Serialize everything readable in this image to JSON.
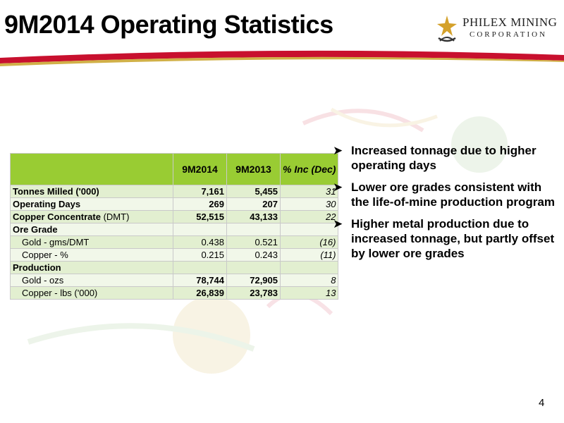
{
  "title": "9M2014 Operating Statistics",
  "logo": {
    "name": "PHILEX MINING",
    "sub": "CORPORATION",
    "icon": "philex-emblem-icon"
  },
  "table": {
    "headers": [
      "",
      "9M2014",
      "9M2013",
      "% Inc (Dec)"
    ],
    "rows": [
      {
        "label": "Tonnes Milled ('000)",
        "label_bold": "Tonnes Milled ('000)",
        "label_rest": "",
        "v2014": "7,161",
        "v2013": "5,455",
        "pct": "31"
      },
      {
        "label": "Operating Days",
        "label_bold": "Operating Days",
        "label_rest": "",
        "v2014": "269",
        "v2013": "207",
        "pct": "30"
      },
      {
        "label": "Copper Concentrate (DMT)",
        "label_bold": "Copper Concentrate",
        "label_rest": " (DMT)",
        "v2014": "52,515",
        "v2013": "43,133",
        "pct": "22"
      },
      {
        "label": "Ore Grade",
        "label_bold": "Ore Grade",
        "label_rest": "",
        "v2014": "",
        "v2013": "",
        "pct": ""
      },
      {
        "label": "Gold - gms/DMT",
        "label_bold": "",
        "label_rest": "Gold - gms/DMT",
        "v2014": "0.438",
        "v2013": "0.521",
        "pct": "(16)"
      },
      {
        "label": "Copper - %",
        "label_bold": "",
        "label_rest": "Copper - %",
        "v2014": "0.215",
        "v2013": "0.243",
        "pct": "(11)"
      },
      {
        "label": "Production",
        "label_bold": "Production",
        "label_rest": "",
        "v2014": "",
        "v2013": "",
        "pct": ""
      },
      {
        "label": "Gold - ozs",
        "label_bold": "",
        "label_rest": "Gold - ozs",
        "v2014": "78,744",
        "v2013": "72,905",
        "pct": "8"
      },
      {
        "label": "Copper - lbs ('000)",
        "label_bold": "",
        "label_rest": "Copper - lbs ('000)",
        "v2014": "26,839",
        "v2013": "23,783",
        "pct": "13"
      }
    ]
  },
  "bullets": [
    "Increased tonnage due to higher operating days",
    "Lower ore grades consistent with the life-of-mine production program",
    "Higher metal production due to increased tonnage, but partly offset by lower ore grades"
  ],
  "bullet_icon": "arrow-bullet-icon",
  "page_number": "4",
  "colors": {
    "header_green": "#99cc33",
    "row_light": "#e2efd0",
    "row_lighter": "#f1f7e9",
    "swoosh_red": "#c8102e",
    "swoosh_gold": "#c9a227"
  }
}
